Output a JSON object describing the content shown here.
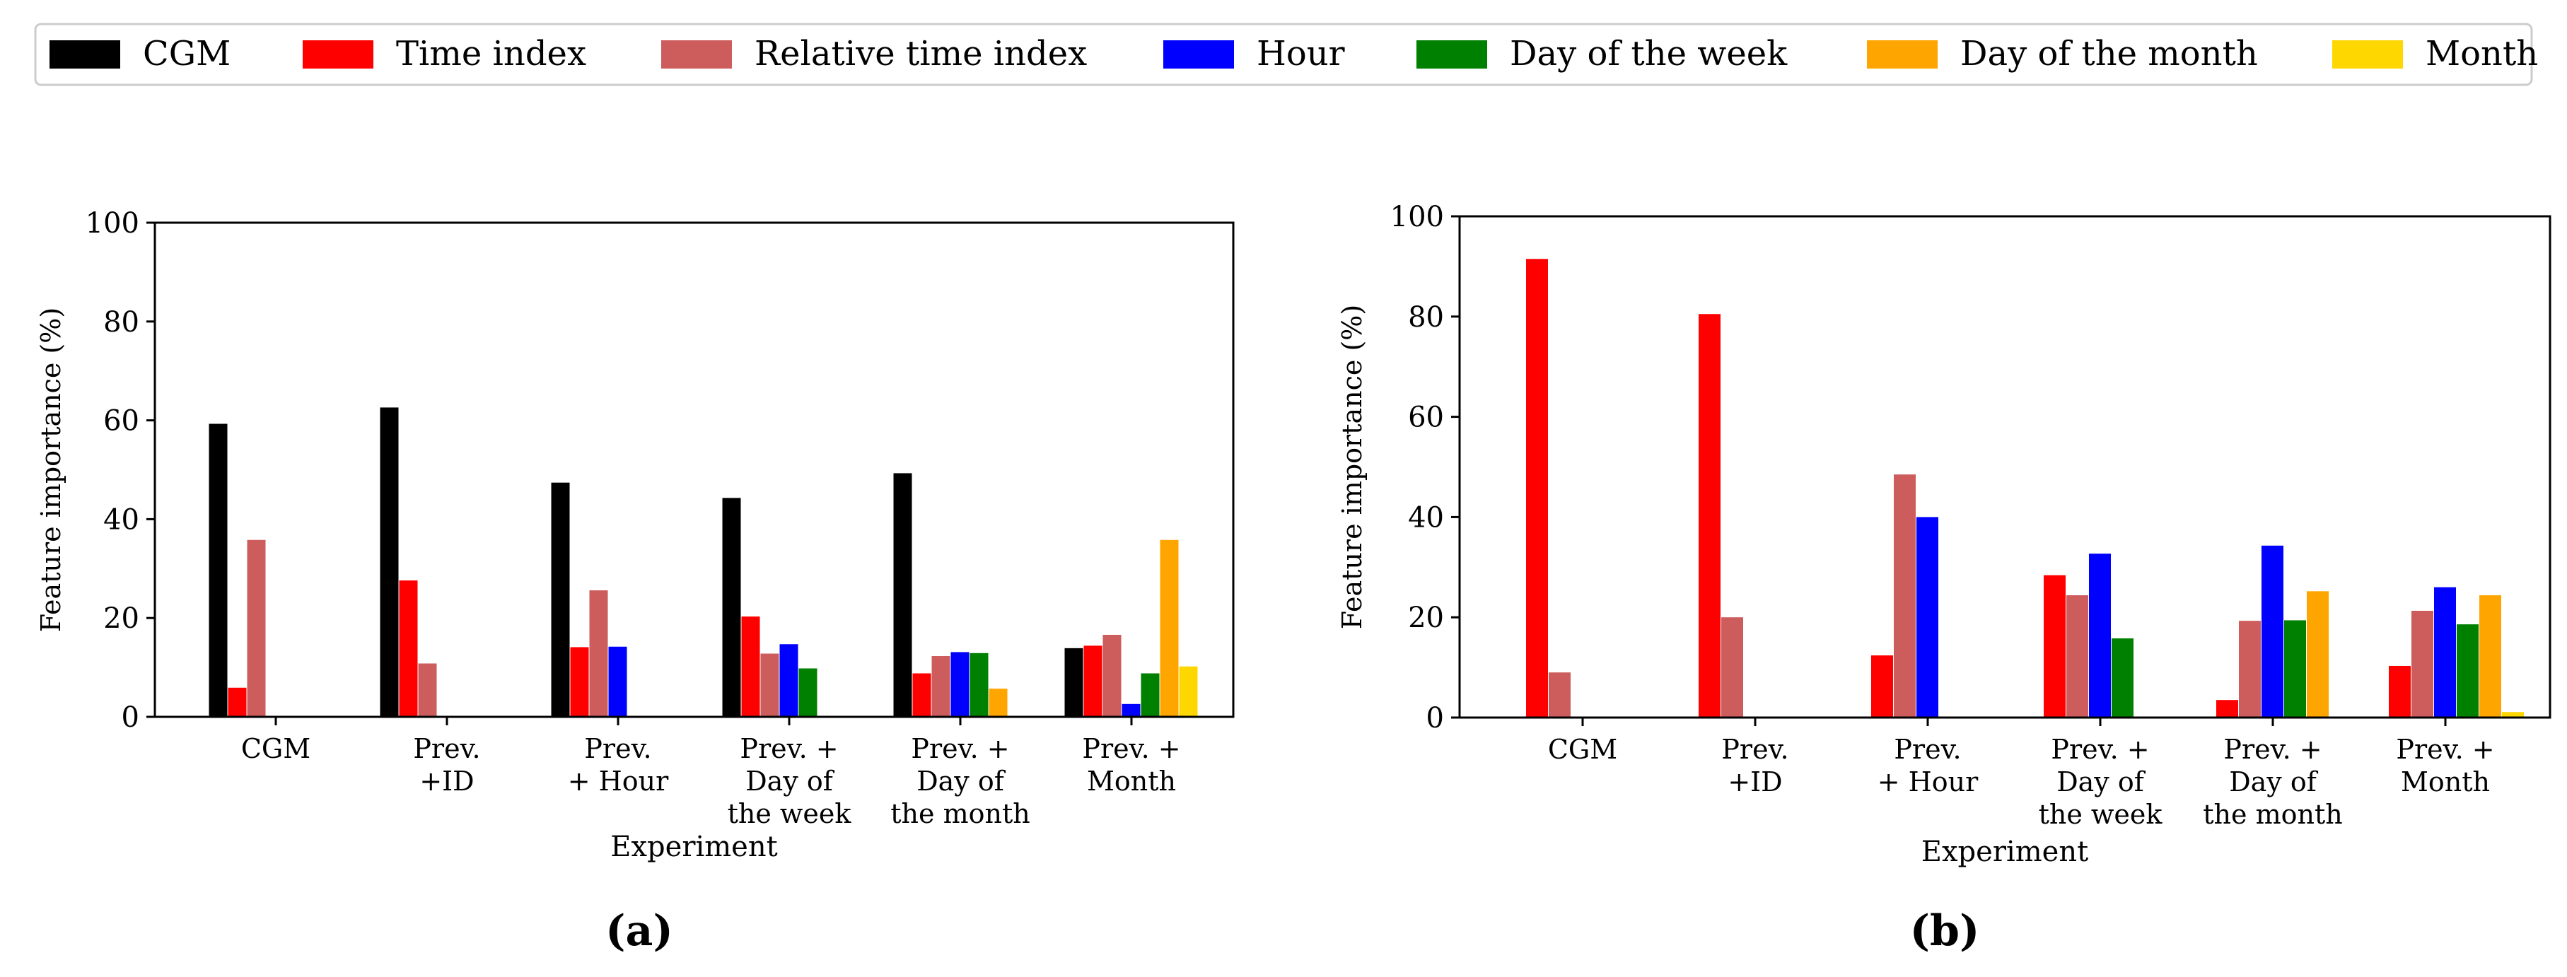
{
  "legend": {
    "entries": [
      {
        "label": "CGM",
        "color": "#000000"
      },
      {
        "label": "Time index",
        "color": "#ff0000"
      },
      {
        "label": "Relative time index",
        "color": "#cd5c5c"
      },
      {
        "label": "Hour",
        "color": "#0000ff"
      },
      {
        "label": "Day of the week",
        "color": "#008000"
      },
      {
        "label": "Day of the month",
        "color": "#ffa500"
      },
      {
        "label": "Month",
        "color": "#ffd700"
      }
    ]
  },
  "chart_data": [
    {
      "type": "bar",
      "panel": "(a)",
      "xlabel": "Experiment",
      "ylabel": "Feature  importance (%)",
      "ylim": [
        0,
        100
      ],
      "yticks": [
        "0",
        "20",
        "40",
        "60",
        "80",
        "100"
      ],
      "categories": [
        [
          "CGM"
        ],
        [
          "Prev.",
          "+ID"
        ],
        [
          "Prev.",
          "+ Hour"
        ],
        [
          "Prev. +",
          "Day of",
          "the week"
        ],
        [
          "Prev. +",
          "Day of",
          "the month"
        ],
        [
          "Prev. +",
          "Month"
        ]
      ],
      "series": [
        {
          "name": "CGM",
          "color": "#000000",
          "values": [
            59.3,
            62.6,
            47.4,
            44.3,
            49.3,
            13.9
          ]
        },
        {
          "name": "Time index",
          "color": "#ff0000",
          "values": [
            5.9,
            27.6,
            14.1,
            20.3,
            8.8,
            14.4
          ]
        },
        {
          "name": "Relative time index",
          "color": "#cd5c5c",
          "values": [
            35.8,
            10.8,
            25.6,
            12.8,
            12.3,
            16.6
          ]
        },
        {
          "name": "Hour",
          "color": "#0000ff",
          "values": [
            0.2,
            0,
            14.2,
            14.7,
            13.1,
            2.6
          ]
        },
        {
          "name": "Day of the week",
          "color": "#008000",
          "values": [
            0,
            0,
            0.2,
            9.8,
            12.9,
            8.8
          ]
        },
        {
          "name": "Day of the month",
          "color": "#ffa500",
          "values": [
            0,
            0,
            0,
            0,
            5.7,
            35.8
          ]
        },
        {
          "name": "Month",
          "color": "#ffd700",
          "values": [
            0,
            0,
            0,
            0,
            0,
            10.2
          ]
        }
      ]
    },
    {
      "type": "bar",
      "panel": "(b)",
      "xlabel": "Experiment",
      "ylabel": "Feature importance (%)",
      "ylim": [
        0,
        100
      ],
      "yticks": [
        "0",
        "20",
        "40",
        "60",
        "80",
        "100"
      ],
      "categories": [
        [
          "CGM"
        ],
        [
          "Prev.",
          "+ID"
        ],
        [
          "Prev.",
          "+ Hour"
        ],
        [
          "Prev. +",
          "Day of",
          "the week"
        ],
        [
          "Prev. +",
          "Day of",
          "the month"
        ],
        [
          "Prev. +",
          "Month"
        ]
      ],
      "series": [
        {
          "name": "CGM",
          "color": "#000000",
          "values": [
            0,
            0,
            0,
            0,
            0,
            0
          ]
        },
        {
          "name": "Time index",
          "color": "#ff0000",
          "values": [
            91.5,
            80.5,
            12.4,
            28.4,
            3.5,
            10.3
          ]
        },
        {
          "name": "Relative time index",
          "color": "#cd5c5c",
          "values": [
            9.0,
            20.0,
            48.5,
            24.4,
            19.3,
            21.3
          ]
        },
        {
          "name": "Hour",
          "color": "#0000ff",
          "values": [
            0.1,
            0.1,
            40.0,
            32.7,
            34.3,
            26.0
          ]
        },
        {
          "name": "Day of the week",
          "color": "#008000",
          "values": [
            0,
            0,
            0.1,
            15.8,
            19.4,
            18.6
          ]
        },
        {
          "name": "Day of the month",
          "color": "#ffa500",
          "values": [
            0,
            0,
            0,
            0.1,
            25.2,
            24.4
          ]
        },
        {
          "name": "Month",
          "color": "#ffd700",
          "values": [
            0,
            0,
            0,
            0,
            0.1,
            1.1
          ]
        }
      ]
    }
  ]
}
